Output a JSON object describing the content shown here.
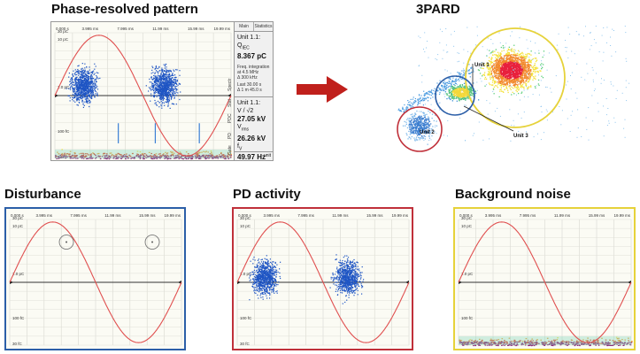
{
  "titles": {
    "main": "Phase-resolved pattern",
    "pard": "3PARD",
    "disturbance": "Disturbance",
    "pd": "PD activity",
    "noise": "Background noise"
  },
  "axis": {
    "x_ticks": [
      "0.000 s",
      "3.995 ms",
      "7.995 ms",
      "11.99 ms",
      "15.99 ms",
      "19.99 ms"
    ],
    "y_ticks": [
      "30 pC",
      "10 pC",
      "1.0 pC",
      "100 fC",
      "30 fC"
    ]
  },
  "side_panel": {
    "tab_main": "Main",
    "tab_statistics": "Statistics",
    "unit_label": "Unit 1.1:",
    "q_label": "Q",
    "q_sub": "IEC",
    "q_value": "8.367 pC",
    "freq_line1": "Freq. integration",
    "freq_line2": "at 4.5 MHz",
    "freq_line3": "Δ 300 kHz",
    "last_line1": "Last 30.00 s",
    "last_line2": "Δ 1 m 45.0 s",
    "v_label": "V / √2",
    "v_value": "27.05 kV",
    "vrms_label": "V",
    "vrms_sub": "rms",
    "vrms_value": "26.26 kV",
    "f_label": "f",
    "f_sub": "V",
    "f_value": "49.97 Hz",
    "bottom_label": "unit"
  },
  "vertical_tabs": [
    "Gate",
    "PD",
    "PDC",
    "Stat",
    "Spectr"
  ],
  "pard_labels": {
    "unit1": "Unit 1",
    "unit2": "Unit 2",
    "unit3": "Unit 3"
  },
  "colors": {
    "sine": "#e05050",
    "pd_dots": "#1f55c4",
    "arrow": "#c0201c",
    "border_disturbance": "#2c5fa8",
    "border_pd": "#c0303a",
    "border_noise": "#e6d23a"
  }
}
